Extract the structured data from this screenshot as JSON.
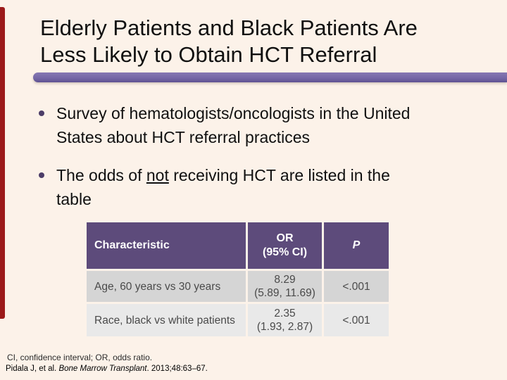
{
  "colors": {
    "background": "#FCF2E9",
    "accent-red": "#9C1A1A",
    "divider-purple": "#7568A6",
    "divider-purple-dark": "#5F5292",
    "divider-purple-light": "#8678B3",
    "bullet-dot": "#4C3D68",
    "table-header-bg": "#5D4B7B",
    "table-header-text": "#FFFFFF",
    "row-odd-bg": "#D5D5D5",
    "row-even-bg": "#E9E9E9",
    "body-text": "#101010",
    "table-body-text": "#4A4A4A",
    "footnote-text": "#2B2B2B"
  },
  "title": {
    "line1": "Elderly Patients and Black Patients Are",
    "line2": "Less Likely to Obtain HCT Referral"
  },
  "bullets": [
    {
      "line1": "Survey of hematologists/oncologists in the United",
      "line2": "States about HCT referral practices"
    },
    {
      "line1_pre": "The odds of ",
      "line1_underlined": "not",
      "line1_post": " receiving HCT are listed in the",
      "line2": "table"
    }
  ],
  "table": {
    "header": {
      "characteristic": "Characteristic",
      "or_line1": "OR",
      "or_line2": "(95% CI)",
      "p": "P"
    },
    "rows": [
      {
        "characteristic": "Age, 60 years vs 30 years",
        "or": "8.29",
        "ci": "(5.89, 11.69)",
        "p": "<.001"
      },
      {
        "characteristic": "Race, black vs white patients",
        "or": "2.35",
        "ci": "(1.93, 2.87)",
        "p": "<.001"
      }
    ]
  },
  "footnotes": {
    "abbreviations": "CI, confidence interval; OR, odds ratio.",
    "citation_pre": "Pidala J, et al. ",
    "citation_italic": "Bone Marrow Transplant",
    "citation_post": ". 2013;48:63–67."
  }
}
